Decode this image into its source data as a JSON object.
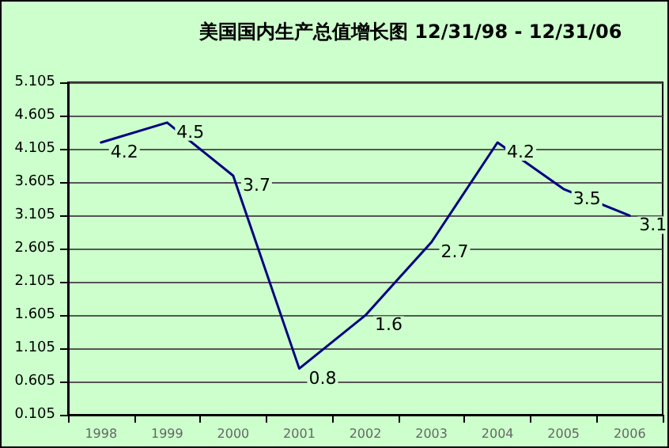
{
  "chart_data": {
    "type": "line",
    "title": "美国国内生产总值增长图 12/31/98 - 12/31/06",
    "categories": [
      "1998",
      "1999",
      "2000",
      "2001",
      "2002",
      "2003",
      "2004",
      "2005",
      "2006"
    ],
    "series": [
      {
        "color": "#000080",
        "values": [
          4.2,
          4.5,
          3.7,
          0.8,
          1.6,
          2.7,
          4.2,
          3.5,
          3.1
        ]
      }
    ],
    "ylim": [
      0.105,
      5.105
    ],
    "yticks": [
      0.105,
      0.605,
      1.105,
      1.605,
      2.105,
      2.605,
      3.105,
      3.605,
      4.105,
      4.605,
      5.105
    ],
    "grid": "y",
    "data_labels": true,
    "marker": "none",
    "line_style": "solid"
  }
}
